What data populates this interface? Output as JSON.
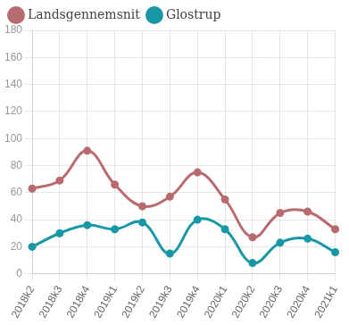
{
  "chart_data": {
    "type": "line",
    "categories": [
      "2018k2",
      "2018k3",
      "2018k4",
      "2019k1",
      "2019k2",
      "2019k3",
      "2019k4",
      "2020k1",
      "2020k2",
      "2020k3",
      "2020k4",
      "2021k1"
    ],
    "series": [
      {
        "name": "Landsgennemsnit",
        "color": "#b86b6f",
        "values": [
          63,
          69,
          91,
          66,
          50,
          57,
          75,
          55,
          27,
          45,
          46,
          33
        ]
      },
      {
        "name": "Glostrup",
        "color": "#1897a6",
        "values": [
          20,
          30,
          36,
          33,
          38,
          15,
          40,
          33,
          8,
          23,
          26,
          16
        ]
      }
    ],
    "ylim": [
      0,
      180
    ],
    "yticks": [
      0,
      20,
      40,
      60,
      80,
      100,
      120,
      140,
      160,
      180
    ],
    "grid": true,
    "legend": "top-left",
    "marker": "circle"
  }
}
